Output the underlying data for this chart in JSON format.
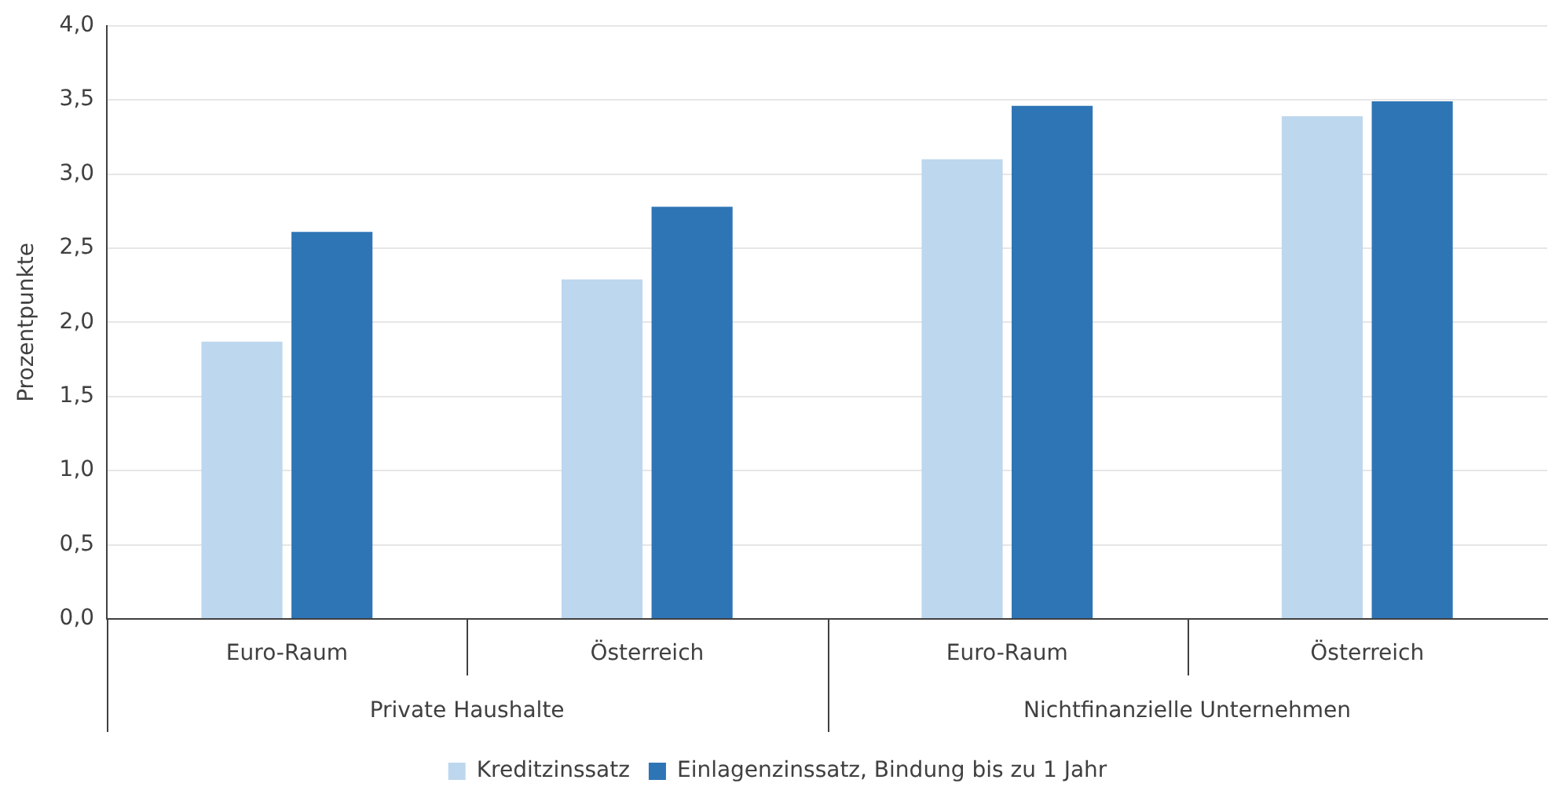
{
  "chart_data": {
    "type": "bar",
    "ylabel": "Prozentpunkte",
    "categories": [
      "Euro-Raum",
      "Österreich",
      "Euro-Raum",
      "Österreich"
    ],
    "series": [
      {
        "name": "Kreditzinssatz",
        "color": "#bdd7ee",
        "values": [
          1.87,
          2.29,
          3.1,
          3.39
        ]
      },
      {
        "name": "Einlagenzinssatz, Bindung bis zu 1 Jahr",
        "color": "#2e75b6",
        "values": [
          2.61,
          2.78,
          3.46,
          3.49
        ]
      }
    ],
    "annotations": [
      "Private Haushalte",
      "Nichtfinanzielle Unternehmen"
    ],
    "ylim": [
      0,
      4
    ],
    "yticks": [
      {
        "value": 0,
        "label": "0,0"
      },
      {
        "value": 0.5,
        "label": "0,5"
      },
      {
        "value": 1,
        "label": "1,0"
      },
      {
        "value": 1.5,
        "label": "1,5"
      },
      {
        "value": 2,
        "label": "2,0"
      },
      {
        "value": 2.5,
        "label": "2,5"
      },
      {
        "value": 3,
        "label": "3,0"
      },
      {
        "value": 3.5,
        "label": "3,5"
      },
      {
        "value": 4,
        "label": "4,0"
      }
    ],
    "grid": "y",
    "legend": "bottom"
  }
}
